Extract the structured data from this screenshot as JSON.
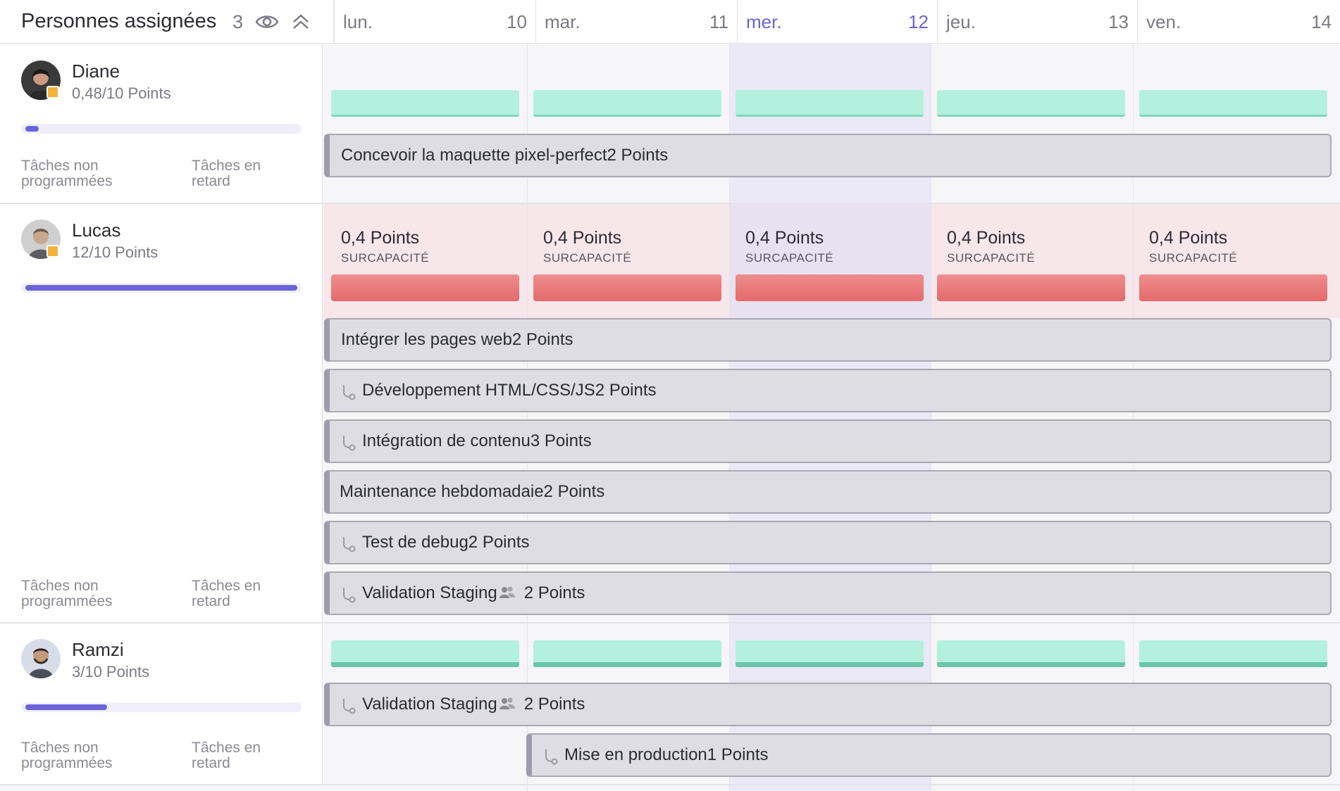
{
  "header": {
    "title": "Personnes assignées",
    "count": "3"
  },
  "days": [
    {
      "name": "lun.",
      "num": "10"
    },
    {
      "name": "mar.",
      "num": "11"
    },
    {
      "name": "mer.",
      "num": "12"
    },
    {
      "name": "jeu.",
      "num": "13"
    },
    {
      "name": "ven.",
      "num": "14"
    }
  ],
  "labels": {
    "unscheduled": "Tâches non programmées",
    "late": "Tâches en retard",
    "overcapacity": "SURCAPACITÉ"
  },
  "people": [
    {
      "name": "Diane",
      "points": "0,48/10 Points",
      "load": 0.048,
      "tasks": [
        {
          "title": "Concevoir la maquette pixel-perfect",
          "points": "2 Points"
        }
      ]
    },
    {
      "name": "Lucas",
      "points": "12/10 Points",
      "load": 1.0,
      "overcap_points": "0,4 Points",
      "tasks": [
        {
          "title": "Intégrer les pages web",
          "points": "2 Points"
        },
        {
          "title": "Développement HTML/CSS/JS",
          "points": "2 Points",
          "subtask": true
        },
        {
          "title": "Intégration de contenu",
          "points": "3 Points",
          "subtask": true
        },
        {
          "title": "Maintenance hebdomadaie",
          "points": "2 Points"
        },
        {
          "title": "Test de debug",
          "points": "2 Points",
          "subtask": true
        },
        {
          "title": "Validation Staging",
          "points": "2 Points",
          "subtask": true,
          "shared": true
        }
      ]
    },
    {
      "name": "Ramzi",
      "points": "3/10 Points",
      "load": 0.3,
      "tasks": [
        {
          "title": "Validation Staging",
          "points": "2 Points",
          "subtask": true,
          "shared": true
        },
        {
          "title": "Mise en production",
          "points": "1 Points",
          "subtask": true
        }
      ]
    }
  ],
  "colors": {
    "accent": "#6b63d9",
    "capacity_ok": "#b4f0de",
    "overcapacity": "#e36a6a",
    "status": "#f0b43b"
  }
}
